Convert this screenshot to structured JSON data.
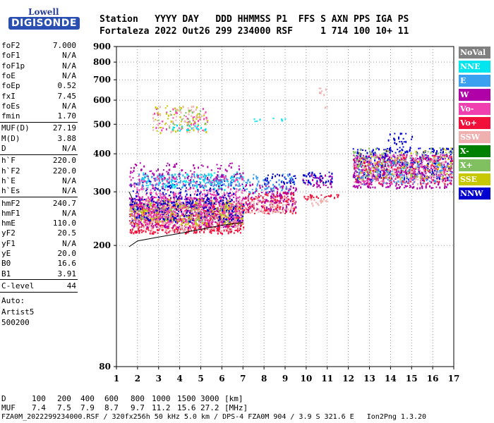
{
  "logo": {
    "line1": "Lowell",
    "line2": "DIGISONDE"
  },
  "header": {
    "row1": "Station   YYYY DAY   DDD HHMMSS P1  FFS S AXN PPS IGA PS",
    "row2": "Fortaleza 2022 Out26 299 234000 RSF     1 714 100 10+ 11"
  },
  "params": {
    "group1": [
      {
        "label": "foF2",
        "value": "7.000"
      },
      {
        "label": "foF1",
        "value": "N/A"
      },
      {
        "label": "foF1p",
        "value": "N/A"
      },
      {
        "label": "foE",
        "value": "N/A"
      },
      {
        "label": "foEp",
        "value": "0.52"
      },
      {
        "label": "fxI",
        "value": "7.45"
      },
      {
        "label": "foEs",
        "value": "N/A"
      },
      {
        "label": "fmin",
        "value": "1.70"
      }
    ],
    "group2": [
      {
        "label": "MUF(D)",
        "value": "27.19"
      },
      {
        "label": "M(D)",
        "value": "3.88"
      },
      {
        "label": "D",
        "value": "N/A"
      }
    ],
    "group3": [
      {
        "label": "h`F",
        "value": "220.0"
      },
      {
        "label": "h`F2",
        "value": "220.0"
      },
      {
        "label": "h`E",
        "value": "N/A"
      },
      {
        "label": "h`Es",
        "value": "N/A"
      }
    ],
    "group4": [
      {
        "label": "hmF2",
        "value": "240.7"
      },
      {
        "label": "hmF1",
        "value": "N/A"
      },
      {
        "label": "hmE",
        "value": "110.0"
      },
      {
        "label": "yF2",
        "value": "20.5"
      },
      {
        "label": "yF1",
        "value": "N/A"
      },
      {
        "label": "yE",
        "value": "20.0"
      },
      {
        "label": "B0",
        "value": "16.6"
      },
      {
        "label": "B1",
        "value": "3.91"
      }
    ],
    "clevel": {
      "label": "C-level",
      "value": "44"
    },
    "auto": [
      "Auto:",
      "Artist5",
      "500200"
    ]
  },
  "legend": [
    {
      "label": "NoVal",
      "color": "#808080"
    },
    {
      "label": "NNE",
      "color": "#00e5ee"
    },
    {
      "label": "E",
      "color": "#3ca0f0"
    },
    {
      "label": "W",
      "color": "#b000a8"
    },
    {
      "label": "Vo-",
      "color": "#f040b0"
    },
    {
      "label": "Vo+",
      "color": "#f0103a"
    },
    {
      "label": "SSW",
      "color": "#f0b0b0"
    },
    {
      "label": "X-",
      "color": "#008000"
    },
    {
      "label": "X+",
      "color": "#80c060"
    },
    {
      "label": "SSE",
      "color": "#c8c800"
    },
    {
      "label": "NNW",
      "color": "#0000d0"
    }
  ],
  "muf_table": {
    "d_label": "D",
    "d_values": [
      "100",
      "200",
      "400",
      "600",
      "800",
      "1000",
      "1500",
      "3000"
    ],
    "d_unit": "[km]",
    "muf_label": "MUF",
    "muf_values": [
      "7.4",
      "7.5",
      "7.9",
      "8.7",
      "9.7",
      "11.2",
      "15.6",
      "27.2"
    ],
    "muf_unit": "[MHz]"
  },
  "footer": "FZA0M_2022299234000.RSF / 320fx256h 50 kHz 5.0 km / DPS-4 FZA0M 904 / 3.9 S 321.6 E   Ion2Png 1.3.20",
  "chart_data": {
    "type": "scatter",
    "title": "",
    "xlabel": "",
    "ylabel": "",
    "xlim": [
      1,
      17
    ],
    "ylim": [
      80,
      900
    ],
    "x_ticks": [
      "1",
      "2",
      "3",
      "4",
      "5",
      "6",
      "7",
      "8",
      "9",
      "10",
      "11",
      "12",
      "13",
      "14",
      "15",
      "16",
      "17"
    ],
    "y_ticks": [
      "80",
      "200",
      "300",
      "400",
      "500",
      "600",
      "700",
      "800",
      "900"
    ],
    "y_scale": "log",
    "grid": true,
    "clusters": [
      {
        "series": "Vo+",
        "x": [
          1.6,
          7.0
        ],
        "y": [
          220,
          275
        ],
        "density": 0.55
      },
      {
        "series": "W",
        "x": [
          1.6,
          7.0
        ],
        "y": [
          230,
          290
        ],
        "density": 0.45
      },
      {
        "series": "SSW",
        "x": [
          1.6,
          7.0
        ],
        "y": [
          225,
          285
        ],
        "density": 0.3
      },
      {
        "series": "X+",
        "x": [
          1.6,
          7.0
        ],
        "y": [
          240,
          280
        ],
        "density": 0.2
      },
      {
        "series": "SSE",
        "x": [
          1.6,
          7.0
        ],
        "y": [
          235,
          285
        ],
        "density": 0.2
      },
      {
        "series": "Vo-",
        "x": [
          1.6,
          7.0
        ],
        "y": [
          235,
          300
        ],
        "density": 0.25
      },
      {
        "series": "NNW",
        "x": [
          1.6,
          7.0
        ],
        "y": [
          240,
          330
        ],
        "density": 0.2
      },
      {
        "series": "E",
        "x": [
          2.0,
          7.0
        ],
        "y": [
          315,
          345
        ],
        "density": 0.45
      },
      {
        "series": "NNE",
        "x": [
          2.0,
          7.0
        ],
        "y": [
          305,
          350
        ],
        "density": 0.15
      },
      {
        "series": "W",
        "x": [
          1.6,
          7.0
        ],
        "y": [
          330,
          375
        ],
        "density": 0.15
      },
      {
        "series": "Vo-",
        "x": [
          1.6,
          7.0
        ],
        "y": [
          285,
          340
        ],
        "density": 0.15
      },
      {
        "series": "SSE",
        "x": [
          2.7,
          5.3
        ],
        "y": [
          470,
          580
        ],
        "density": 0.12
      },
      {
        "series": "SSW",
        "x": [
          2.7,
          5.3
        ],
        "y": [
          470,
          580
        ],
        "density": 0.12
      },
      {
        "series": "Vo-",
        "x": [
          2.7,
          5.3
        ],
        "y": [
          470,
          570
        ],
        "density": 0.08
      },
      {
        "series": "NNE",
        "x": [
          3.5,
          5.3
        ],
        "y": [
          480,
          500
        ],
        "density": 0.25
      },
      {
        "series": "X+",
        "x": [
          2.7,
          5.3
        ],
        "y": [
          480,
          560
        ],
        "density": 0.06
      },
      {
        "series": "Vo+",
        "x": [
          7.0,
          9.5
        ],
        "y": [
          255,
          300
        ],
        "density": 0.4
      },
      {
        "series": "W",
        "x": [
          7.0,
          9.5
        ],
        "y": [
          260,
          320
        ],
        "density": 0.3
      },
      {
        "series": "NNW",
        "x": [
          8.0,
          9.5
        ],
        "y": [
          320,
          345
        ],
        "density": 0.35
      },
      {
        "series": "E",
        "x": [
          7.0,
          9.5
        ],
        "y": [
          300,
          345
        ],
        "density": 0.2
      },
      {
        "series": "SSW",
        "x": [
          7.0,
          9.5
        ],
        "y": [
          255,
          290
        ],
        "density": 0.25
      },
      {
        "series": "NNE",
        "x": [
          7.5,
          9.0
        ],
        "y": [
          510,
          530
        ],
        "density": 0.15
      },
      {
        "series": "NNW",
        "x": [
          9.8,
          11.2
        ],
        "y": [
          320,
          350
        ],
        "density": 0.35
      },
      {
        "series": "W",
        "x": [
          9.8,
          11.2
        ],
        "y": [
          310,
          345
        ],
        "density": 0.25
      },
      {
        "series": "Vo+",
        "x": [
          9.8,
          11.5
        ],
        "y": [
          285,
          295
        ],
        "density": 0.5
      },
      {
        "series": "SSW",
        "x": [
          10.0,
          11.0
        ],
        "y": [
          270,
          290
        ],
        "density": 0.3
      },
      {
        "series": "SSW",
        "x": [
          10.5,
          11.0
        ],
        "y": [
          550,
          700
        ],
        "density": 0.08
      },
      {
        "series": "NNW",
        "x": [
          12.2,
          16.9
        ],
        "y": [
          330,
          420
        ],
        "density": 0.35
      },
      {
        "series": "W",
        "x": [
          12.2,
          16.9
        ],
        "y": [
          310,
          400
        ],
        "density": 0.35
      },
      {
        "series": "SSW",
        "x": [
          12.2,
          16.9
        ],
        "y": [
          320,
          400
        ],
        "density": 0.25
      },
      {
        "series": "E",
        "x": [
          12.2,
          16.9
        ],
        "y": [
          320,
          380
        ],
        "density": 0.15
      },
      {
        "series": "Vo+",
        "x": [
          12.2,
          16.9
        ],
        "y": [
          320,
          400
        ],
        "density": 0.12
      },
      {
        "series": "Vo-",
        "x": [
          12.2,
          16.9
        ],
        "y": [
          320,
          400
        ],
        "density": 0.12
      },
      {
        "series": "X+",
        "x": [
          12.2,
          16.9
        ],
        "y": [
          330,
          420
        ],
        "density": 0.08
      },
      {
        "series": "NNW",
        "x": [
          13.8,
          15.0
        ],
        "y": [
          420,
          470
        ],
        "density": 0.2
      },
      {
        "series": "SSE",
        "x": [
          12.2,
          16.9
        ],
        "y": [
          330,
          420
        ],
        "density": 0.06
      }
    ],
    "trace": {
      "name": "",
      "x": [
        1.6,
        2.0,
        3.0,
        4.0,
        5.0,
        6.0,
        7.0
      ],
      "y": [
        198,
        207,
        213,
        219,
        226,
        233,
        238
      ]
    }
  }
}
